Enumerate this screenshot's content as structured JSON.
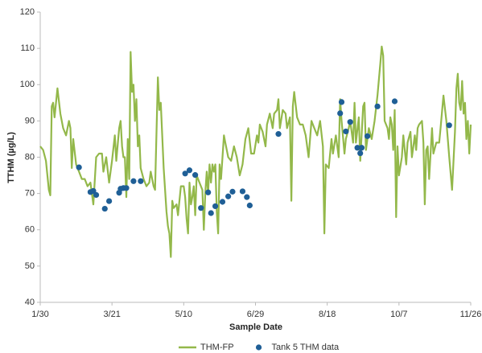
{
  "chart_data": {
    "type": "line",
    "x_label": "Sample Date",
    "y_label": "TTHM (µg/L)",
    "xlim": [
      "1/30",
      "11/26"
    ],
    "xticks": [
      "1/30",
      "3/21",
      "5/10",
      "6/29",
      "8/18",
      "10/7",
      "11/26"
    ],
    "ylim": [
      40,
      120
    ],
    "yticks": [
      40,
      50,
      60,
      70,
      80,
      90,
      100,
      110,
      120
    ],
    "series": [
      {
        "name": "THM-FP",
        "type": "line",
        "color": "#93b84a",
        "x": [
          "1/30",
          "2/1",
          "2/3",
          "2/5",
          "2/6",
          "2/7",
          "2/8",
          "2/9",
          "2/11",
          "2/13",
          "2/15",
          "2/17",
          "2/19",
          "2/20",
          "2/21",
          "2/22",
          "2/24",
          "2/26",
          "2/28",
          "3/2",
          "3/4",
          "3/6",
          "3/8",
          "3/10",
          "3/12",
          "3/14",
          "3/15",
          "3/17",
          "3/19",
          "3/21",
          "3/23",
          "3/24",
          "3/26",
          "3/27",
          "3/28",
          "3/29",
          "3/30",
          "3/31",
          "4/1",
          "4/2",
          "4/3",
          "4/4",
          "4/5",
          "4/6",
          "4/7",
          "4/8",
          "4/9",
          "4/10",
          "4/12",
          "4/14",
          "4/16",
          "4/17",
          "4/19",
          "4/20",
          "4/22",
          "4/23",
          "4/24",
          "4/25",
          "4/26",
          "4/28",
          "4/29",
          "4/30",
          "5/1",
          "5/2",
          "5/3",
          "5/5",
          "5/6",
          "5/8",
          "5/10",
          "5/11",
          "5/12",
          "5/13",
          "5/14",
          "5/15",
          "5/16",
          "5/17",
          "5/18",
          "5/19",
          "5/21",
          "5/23",
          "5/24",
          "5/25",
          "5/26",
          "5/27",
          "5/28",
          "5/29",
          "5/30",
          "5/31",
          "6/1",
          "6/2",
          "6/3",
          "6/4",
          "6/5",
          "6/6",
          "6/7",
          "6/8",
          "6/10",
          "6/12",
          "6/14",
          "6/16",
          "6/18",
          "6/20",
          "6/22",
          "6/24",
          "6/26",
          "6/28",
          "6/30",
          "7/1",
          "7/2",
          "7/4",
          "7/6",
          "7/7",
          "7/9",
          "7/11",
          "7/12",
          "7/14",
          "7/15",
          "7/16",
          "7/18",
          "7/20",
          "7/21",
          "7/23",
          "7/24",
          "7/25",
          "7/26",
          "7/28",
          "7/30",
          "8/1",
          "8/3",
          "8/5",
          "8/7",
          "8/9",
          "8/11",
          "8/13",
          "8/15",
          "8/16",
          "8/17",
          "8/19",
          "8/21",
          "8/22",
          "8/24",
          "8/26",
          "8/27",
          "8/28",
          "8/30",
          "8/31",
          "9/2",
          "9/3",
          "9/5",
          "9/6",
          "9/7",
          "9/9",
          "9/10",
          "9/12",
          "9/13",
          "9/14",
          "9/16",
          "9/18",
          "9/20",
          "9/22",
          "9/24",
          "9/25",
          "9/26",
          "9/27",
          "9/29",
          "9/30",
          "10/1",
          "10/2",
          "10/3",
          "10/4",
          "10/5",
          "10/6",
          "10/7",
          "10/9",
          "10/10",
          "10/12",
          "10/13",
          "10/15",
          "10/16",
          "10/18",
          "10/19",
          "10/20",
          "10/21",
          "10/23",
          "10/24",
          "10/25",
          "10/26",
          "10/27",
          "10/28",
          "10/30",
          "10/31",
          "11/2",
          "11/4",
          "11/5",
          "11/7",
          "11/9",
          "11/11",
          "11/13",
          "11/15",
          "11/16",
          "11/17",
          "11/18",
          "11/19",
          "11/20",
          "11/21",
          "11/22",
          "11/23",
          "11/24",
          "11/25",
          "11/26"
        ],
        "values": [
          83,
          82,
          79,
          71,
          69.5,
          94,
          95,
          91,
          99,
          92,
          88,
          86,
          90,
          88,
          77,
          85,
          78,
          76,
          74,
          74,
          72,
          73,
          67,
          80,
          81,
          81,
          76,
          80,
          73,
          79,
          86,
          79,
          88,
          90,
          83,
          80,
          80,
          69,
          85,
          74,
          109,
          98,
          100,
          90,
          96,
          83,
          86,
          77,
          74,
          72,
          73,
          76,
          72,
          71,
          102,
          93,
          95,
          86,
          77,
          65,
          61,
          59,
          52.5,
          68,
          66,
          67,
          64,
          72,
          72,
          69,
          63,
          59,
          73,
          67,
          69,
          72,
          64,
          75,
          73,
          71,
          60,
          70,
          76,
          70,
          78,
          73,
          78,
          76,
          78,
          65,
          59,
          78,
          74,
          80,
          86,
          84,
          80,
          79,
          83,
          80,
          75,
          78,
          85,
          88,
          81,
          81,
          86,
          84,
          89,
          87,
          83,
          89,
          92,
          88,
          92,
          93,
          96,
          88,
          93,
          92,
          88,
          91,
          68,
          94,
          98,
          91,
          89,
          89,
          86,
          80,
          90,
          88,
          86,
          90,
          83,
          59,
          78,
          77,
          85,
          81,
          86,
          80,
          96,
          90,
          81,
          85,
          88,
          90,
          84,
          95,
          84,
          91,
          79,
          94,
          95,
          82,
          88,
          85,
          90,
          97,
          106,
          110.5,
          108,
          90,
          88,
          85,
          91,
          89,
          82,
          93,
          63.5,
          83,
          75,
          80,
          86,
          78,
          84,
          87,
          80,
          86,
          82,
          88,
          89,
          90,
          84,
          67,
          82,
          83,
          74,
          88,
          81,
          84,
          84,
          88,
          97,
          90,
          80,
          71,
          87,
          99,
          103,
          95,
          93,
          101,
          92,
          95,
          85,
          90,
          81,
          89
        ]
      },
      {
        "name": "Tank 5 THM data",
        "type": "scatter",
        "color": "#1f5f96",
        "x": [
          "2/26",
          "3/6",
          "3/8",
          "3/10",
          "3/16",
          "3/19",
          "3/26",
          "3/27",
          "3/29",
          "3/31",
          "4/5",
          "4/10",
          "5/11",
          "5/14",
          "5/18",
          "5/22",
          "5/27",
          "5/29",
          "6/1",
          "6/6",
          "6/10",
          "6/13",
          "6/20",
          "6/23",
          "6/25",
          "7/15",
          "8/27",
          "8/28",
          "8/31",
          "9/3",
          "9/8",
          "9/10",
          "9/11",
          "9/15",
          "9/22",
          "10/4",
          "11/11"
        ],
        "values": [
          77.2,
          70.4,
          70.7,
          69.6,
          65.8,
          67.9,
          70.2,
          71.3,
          71.5,
          71.5,
          73.4,
          73.4,
          75.5,
          76.4,
          75.1,
          66,
          70.3,
          64.6,
          66.5,
          67.7,
          69.2,
          70.5,
          70.6,
          69,
          66.7,
          86.4,
          92.1,
          95.2,
          87.1,
          89.7,
          82.6,
          81.1,
          82.6,
          85.8,
          94,
          95.4,
          88.8
        ]
      }
    ]
  }
}
